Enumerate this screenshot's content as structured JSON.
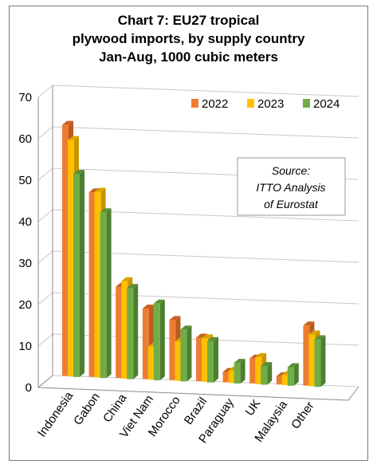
{
  "chart_data": {
    "type": "bar",
    "title_lines": [
      "Chart 7: EU27 tropical",
      "plywood imports, by supply country",
      "Jan-Aug, 1000 cubic meters"
    ],
    "categories": [
      "Indonesia",
      "Gabon",
      "China",
      "Viet Nam",
      "Morocco",
      "Brazil",
      "Paraguay",
      "UK",
      "Malaysia",
      "Other"
    ],
    "series": [
      {
        "name": "2022",
        "values": [
          60.5,
          44.5,
          22.0,
          17.0,
          14.5,
          10.5,
          2.5,
          6.0,
          2.0,
          14.5
        ]
      },
      {
        "name": "2023",
        "values": [
          57.0,
          44.8,
          23.5,
          8.0,
          9.5,
          10.5,
          3.0,
          6.5,
          2.5,
          12.5
        ]
      },
      {
        "name": "2024",
        "values": [
          49.0,
          40.0,
          22.0,
          18.5,
          12.5,
          10.0,
          5.0,
          4.5,
          4.5,
          11.5
        ]
      }
    ],
    "ylim": [
      0,
      70
    ],
    "yticks": [
      0,
      10,
      20,
      30,
      40,
      50,
      60,
      70
    ],
    "grid": true,
    "legend": "top-right",
    "annotation_lines": [
      "Source:",
      "ITTO Analysis",
      "of Eurostat"
    ],
    "colors": {
      "2022": {
        "front": "#ED7D31",
        "side": "#B95A1E",
        "top": "#C7621F"
      },
      "2023": {
        "front": "#FFC000",
        "side": "#C79500",
        "top": "#D9A300"
      },
      "2024": {
        "front": "#70AD47",
        "side": "#4E7E30",
        "top": "#5A8F38"
      },
      "grid": "#c8c8c8",
      "axis": "#8a8a8a"
    }
  }
}
